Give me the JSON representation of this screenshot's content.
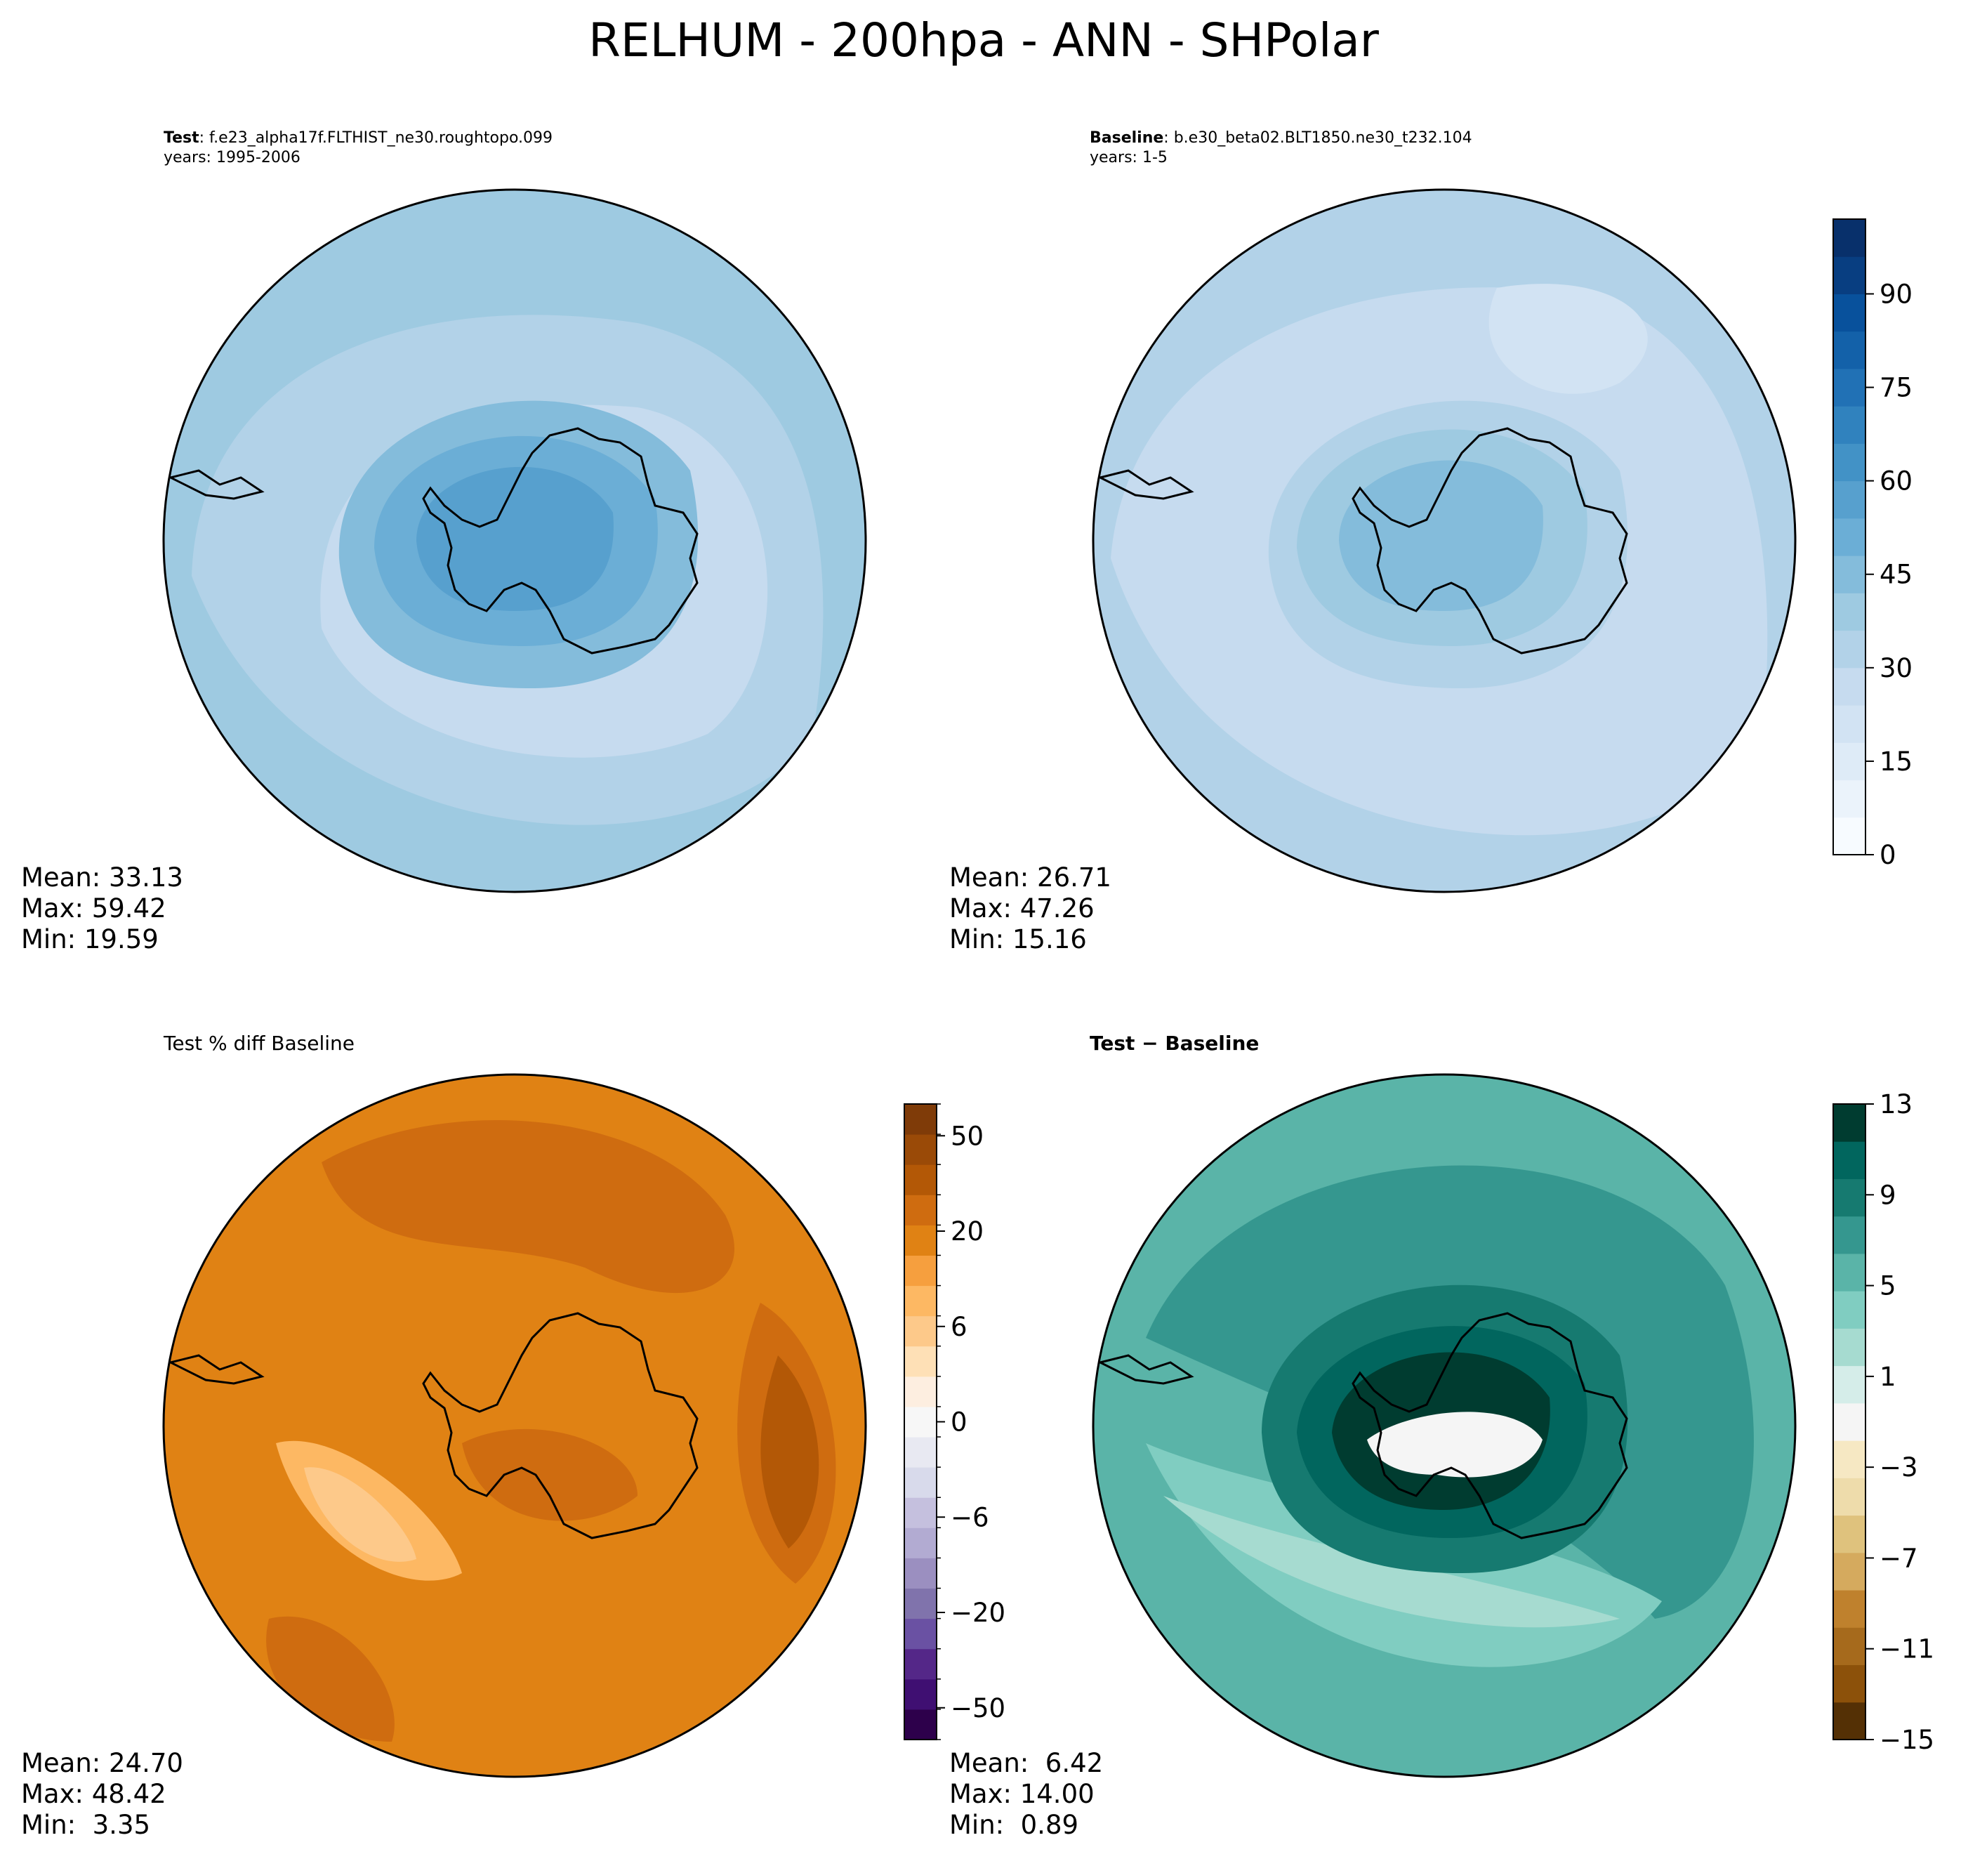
{
  "figure": {
    "title": "RELHUM - 200hpa - ANN - SHPolar"
  },
  "chart_data": [
    {
      "type": "heatmap",
      "projection": "south-polar-stereographic",
      "header_bold": "Test",
      "header_text": ": f.e23_alpha17f.FLTHIST_ne30.roughtopo.099",
      "subheader": "years: 1995-2006",
      "stats": [
        "Mean: 33.13",
        "Max: 59.42",
        "Min: 19.59"
      ],
      "mean": 33.13,
      "max": 59.42,
      "min": 19.59,
      "colormap": "blues",
      "shared_colorbar": 0
    },
    {
      "type": "heatmap",
      "projection": "south-polar-stereographic",
      "header_bold": "Baseline",
      "header_text": ": b.e30_beta02.BLT1850.ne30_t232.104",
      "subheader": "years: 1-5",
      "stats": [
        "Mean: 26.71",
        "Max: 47.26",
        "Min: 15.16"
      ],
      "mean": 26.71,
      "max": 47.26,
      "min": 15.16,
      "colormap": "blues",
      "shared_colorbar": 0
    },
    {
      "type": "heatmap",
      "projection": "south-polar-stereographic",
      "header_bold": "",
      "header_text": "Test % diff Baseline",
      "subheader": "",
      "stats": [
        "Mean: 24.70",
        "Max: 48.42",
        "Min:  3.35"
      ],
      "mean": 24.7,
      "max": 48.42,
      "min": 3.35,
      "colormap": "PuOr_r",
      "shared_colorbar": 1
    },
    {
      "type": "heatmap",
      "projection": "south-polar-stereographic",
      "header_bold": "Test − Baseline",
      "header_text": "",
      "subheader": "",
      "stats": [
        "Mean:  6.42",
        "Max: 14.00",
        "Min:  0.89"
      ],
      "mean": 6.42,
      "max": 14.0,
      "min": 0.89,
      "colormap": "BrBG",
      "shared_colorbar": 2
    }
  ],
  "colorbars": [
    {
      "tick_labels": [
        "0",
        "15",
        "30",
        "45",
        "60",
        "75",
        "90"
      ],
      "minor_ticks": 0,
      "colors": [
        "#f7fbff",
        "#ebf3fb",
        "#deebf7",
        "#d2e3f3",
        "#c6dbef",
        "#b2d2e8",
        "#9ecae1",
        "#84bcdb",
        "#6baed6",
        "#57a0ce",
        "#4292c6",
        "#3082be",
        "#2171b5",
        "#1361a9",
        "#08519c",
        "#083e81",
        "#08306b"
      ]
    },
    {
      "tick_labels": [
        "−50",
        "−20",
        "−6",
        "0",
        "6",
        "20",
        "50"
      ],
      "minor_ticks": 1,
      "colors": [
        "#2d004b",
        "#3f0f72",
        "#542788",
        "#6a51a3",
        "#8073ac",
        "#9b8fc0",
        "#b2abd2",
        "#c5c0de",
        "#d8daeb",
        "#e8e9f2",
        "#f7f7f7",
        "#fdeee0",
        "#fee0b6",
        "#fdc98a",
        "#fdb863",
        "#f69f3e",
        "#e08214",
        "#cf6c10",
        "#b35806",
        "#9a4a07",
        "#7f3b08"
      ]
    },
    {
      "tick_labels": [
        "−15",
        "−11",
        "−7",
        "−3",
        "1",
        "5",
        "9",
        "13"
      ],
      "minor_ticks": 0,
      "colors": [
        "#543005",
        "#8c510a",
        "#a66a1c",
        "#bf812d",
        "#d5aa5e",
        "#dfc27d",
        "#eedcab",
        "#f6e8c3",
        "#f5f5f5",
        "#d5ede9",
        "#a6dbd0",
        "#80cdc1",
        "#5ab4a8",
        "#35978f",
        "#167a70",
        "#01665e",
        "#003c30"
      ]
    }
  ]
}
